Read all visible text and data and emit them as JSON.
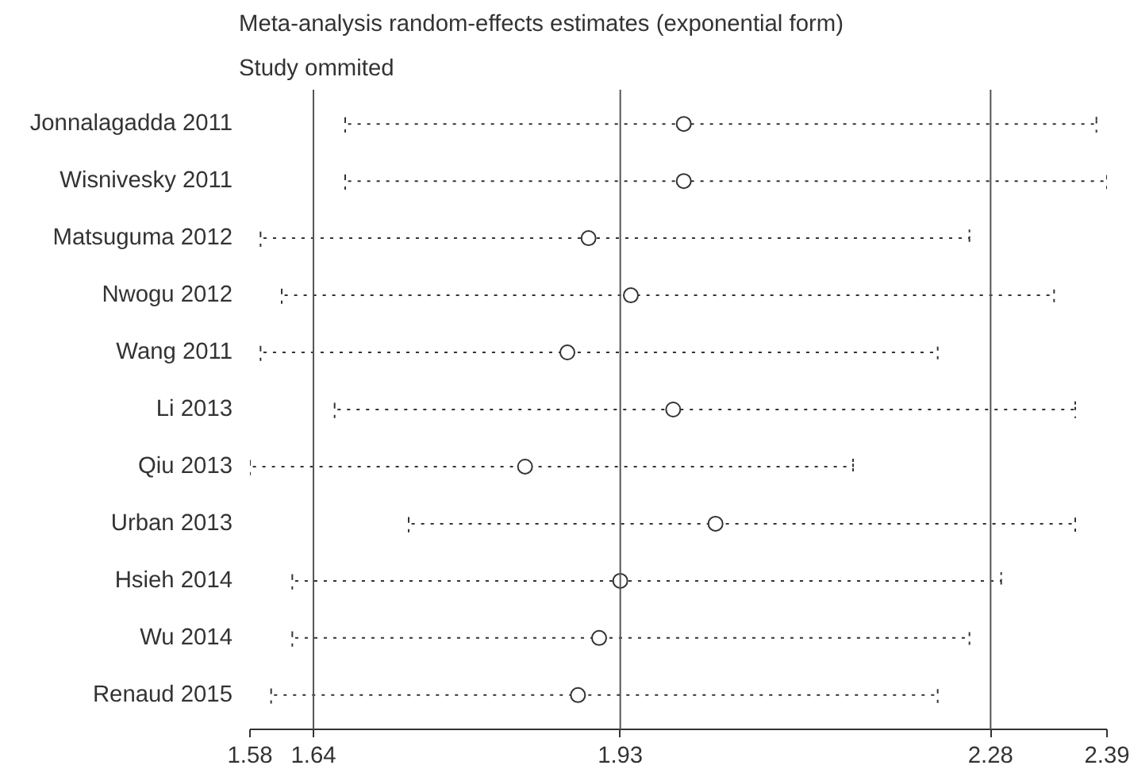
{
  "chart_data": {
    "type": "scatter",
    "orientation": "horizontal",
    "title": "Meta-analysis random-effects estimates (exponential form)",
    "subtitle": "Study ommited",
    "categories": [
      "Jonnalagadda 2011",
      "Wisnivesky 2011",
      "Matsuguma 2012",
      "Nwogu 2012",
      "Wang 2011",
      "Li 2013",
      "Qiu 2013",
      "Urban 2013",
      "Hsieh 2014",
      "Wu 2014",
      "Renaud 2015"
    ],
    "series": [
      {
        "color": "#333333",
        "values": [
          1.99,
          1.99,
          1.9,
          1.94,
          1.88,
          1.98,
          1.84,
          2.02,
          1.93,
          1.91,
          1.89
        ],
        "errors": [
          [
            1.67,
            2.38
          ],
          [
            1.67,
            2.39
          ],
          [
            1.59,
            2.26
          ],
          [
            1.61,
            2.34
          ],
          [
            1.59,
            2.23
          ],
          [
            1.66,
            2.36
          ],
          [
            1.58,
            2.15
          ],
          [
            1.73,
            2.36
          ],
          [
            1.62,
            2.29
          ],
          [
            1.62,
            2.26
          ],
          [
            1.6,
            2.23
          ]
        ]
      }
    ],
    "xlim": [
      1.58,
      2.39
    ],
    "xticks": [
      1.58,
      1.64,
      1.93,
      2.28,
      2.39
    ],
    "ref_lines": [
      {
        "axis": "x",
        "value": 1.64,
        "color": "#555555"
      },
      {
        "axis": "x",
        "value": 1.93,
        "color": "#555555"
      },
      {
        "axis": "x",
        "value": 2.28,
        "color": "#555555"
      }
    ],
    "marker": "circle",
    "line_style": "dotted",
    "grid": false
  }
}
